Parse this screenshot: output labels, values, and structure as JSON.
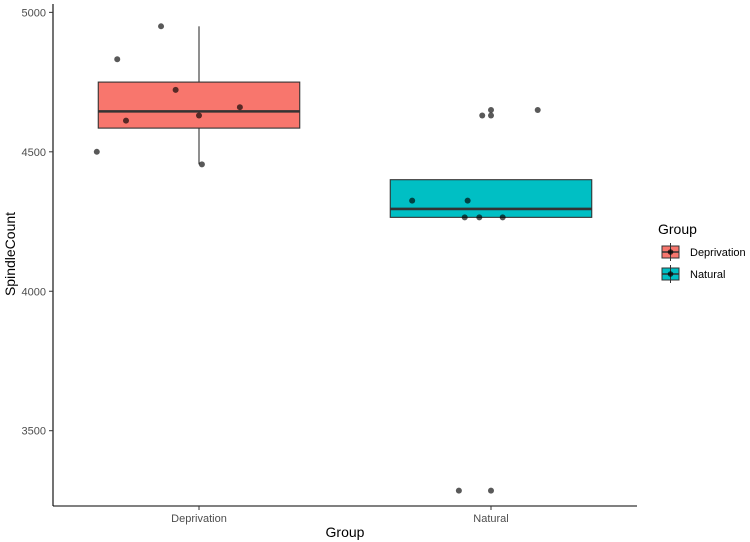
{
  "chart_data": {
    "type": "boxplot",
    "xlabel": "Group",
    "ylabel": "SpindleCount",
    "categories": [
      "Deprivation",
      "Natural"
    ],
    "ylim": [
      3230,
      5030
    ],
    "yticks": [
      3500,
      4000,
      4500,
      5000
    ],
    "grid": false,
    "legend": {
      "title": "Group",
      "placement": "right",
      "entries": [
        "Deprivation",
        "Natural"
      ]
    },
    "boxes": [
      {
        "name": "Deprivation",
        "color": "#F8766D",
        "whisker_low": 4455,
        "q1": 4585,
        "median": 4645,
        "q3": 4750,
        "whisker_high": 4950,
        "points": [
          {
            "x": -0.13,
            "y": 4950
          },
          {
            "x": -0.28,
            "y": 4832
          },
          {
            "x": -0.08,
            "y": 4722
          },
          {
            "x": 0.14,
            "y": 4660
          },
          {
            "x": 0.0,
            "y": 4630
          },
          {
            "x": -0.25,
            "y": 4612
          },
          {
            "x": -0.35,
            "y": 4500
          },
          {
            "x": 0.01,
            "y": 4455
          }
        ]
      },
      {
        "name": "Natural",
        "color": "#00BFC4",
        "whisker_low": 4265,
        "q1": 4265,
        "median": 4295,
        "q3": 4400,
        "whisker_high": 4400,
        "points": [
          {
            "x": 0.16,
            "y": 4650
          },
          {
            "x": 0.0,
            "y": 4650
          },
          {
            "x": -0.03,
            "y": 4630
          },
          {
            "x": 0.0,
            "y": 4630
          },
          {
            "x": -0.27,
            "y": 4325
          },
          {
            "x": -0.08,
            "y": 4325
          },
          {
            "x": -0.09,
            "y": 4265
          },
          {
            "x": -0.04,
            "y": 4265
          },
          {
            "x": 0.04,
            "y": 4265
          },
          {
            "x": -0.11,
            "y": 3285
          },
          {
            "x": 0.0,
            "y": 3285
          }
        ]
      }
    ]
  }
}
